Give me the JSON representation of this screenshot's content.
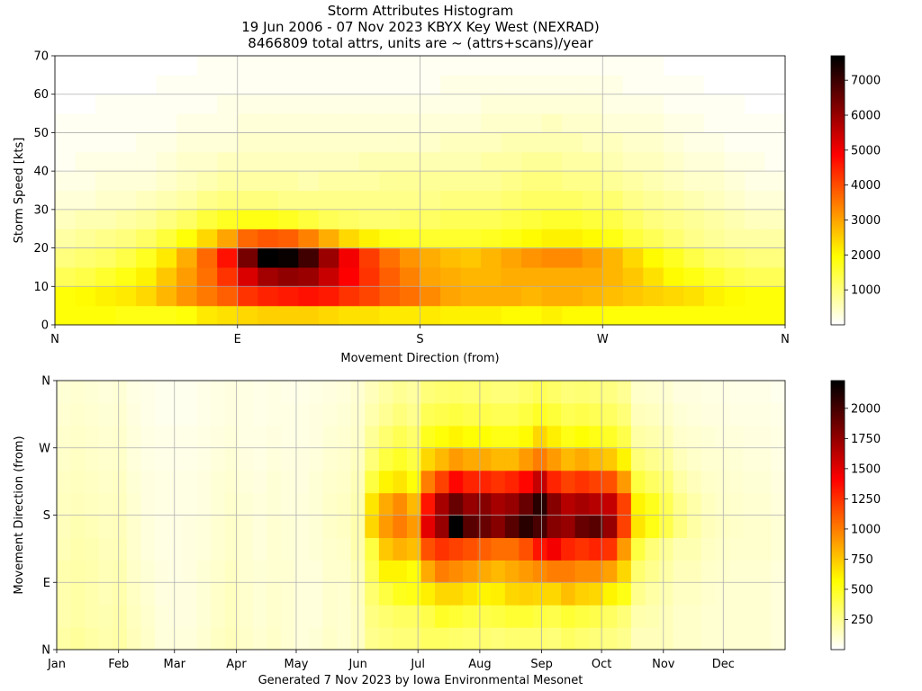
{
  "title_lines": [
    "Storm Attributes Histogram",
    "19 Jun 2006 - 07 Nov 2023 KBYX Key West (NEXRAD)",
    "8466809 total attrs, units are ~ (attrs+scans)/year"
  ],
  "footer": "Generated 7 Nov 2023 by Iowa Environmental Mesonet",
  "chart_data": [
    {
      "type": "heatmap",
      "xlabel": "Movement Direction (from)",
      "ylabel": "Storm Speed [kts]",
      "xticks": [
        {
          "value": 0,
          "label": "N"
        },
        {
          "value": 90,
          "label": "E"
        },
        {
          "value": 180,
          "label": "S"
        },
        {
          "value": 270,
          "label": "W"
        },
        {
          "value": 360,
          "label": "N"
        }
      ],
      "yticks": [
        0,
        10,
        20,
        30,
        40,
        50,
        60,
        70
      ],
      "xlim": [
        0,
        360
      ],
      "ylim": [
        0,
        70
      ],
      "x_bin_deg": 10,
      "y_bins_kts": [
        0,
        5,
        10,
        15,
        20,
        25,
        30,
        35,
        40,
        45,
        50,
        55,
        60,
        65,
        70
      ],
      "colorbar": {
        "min": 0,
        "max": 7700,
        "ticks": [
          1000,
          2000,
          3000,
          4000,
          5000,
          6000,
          7000
        ]
      },
      "colormap": "hot_r",
      "grid": true,
      "values": [
        [
          1900,
          1900,
          1900,
          1800,
          1800,
          1800,
          1900,
          2200,
          2300,
          2400,
          2500,
          2500,
          2500,
          2400,
          2300,
          2300,
          2200,
          2200,
          2200,
          2100,
          2100,
          2100,
          2000,
          2000,
          2100,
          2000,
          2000,
          1900,
          1900,
          1900,
          1900,
          1900,
          1900,
          1900,
          1900,
          1900
        ],
        [
          1900,
          2000,
          2100,
          2200,
          2400,
          2800,
          3200,
          3500,
          3800,
          4300,
          4500,
          4600,
          4700,
          4600,
          4300,
          4100,
          3800,
          3600,
          3300,
          3000,
          2900,
          2900,
          2900,
          2800,
          2900,
          2900,
          2800,
          2700,
          2600,
          2500,
          2400,
          2300,
          2100,
          2000,
          1900,
          1900
        ],
        [
          1300,
          1400,
          1600,
          1800,
          2100,
          2600,
          3100,
          3600,
          4300,
          5300,
          5900,
          6100,
          6000,
          5500,
          4900,
          4300,
          3800,
          3400,
          3000,
          2900,
          2800,
          2800,
          2900,
          2900,
          2900,
          2900,
          2900,
          2800,
          2600,
          2300,
          2000,
          1800,
          1600,
          1400,
          1300,
          1300
        ],
        [
          1000,
          1100,
          1200,
          1400,
          1700,
          2200,
          2900,
          3700,
          4700,
          6400,
          7700,
          7600,
          7000,
          6000,
          5000,
          4200,
          3600,
          3200,
          2900,
          2700,
          2600,
          2800,
          3000,
          3200,
          3300,
          3300,
          3100,
          2800,
          2400,
          2000,
          1700,
          1400,
          1200,
          1100,
          1000,
          1000
        ],
        [
          700,
          800,
          900,
          1000,
          1200,
          1500,
          1900,
          2400,
          3000,
          3700,
          3900,
          3800,
          3400,
          2900,
          2400,
          2100,
          1800,
          1700,
          1600,
          1600,
          1600,
          1700,
          1800,
          2000,
          2100,
          2100,
          2000,
          1800,
          1500,
          1300,
          1100,
          900,
          800,
          700,
          700,
          700
        ],
        [
          500,
          600,
          600,
          700,
          800,
          1000,
          1200,
          1500,
          1700,
          1800,
          1800,
          1700,
          1500,
          1300,
          1200,
          1100,
          1100,
          1200,
          1200,
          1300,
          1300,
          1300,
          1400,
          1500,
          1600,
          1600,
          1500,
          1400,
          1200,
          1000,
          900,
          800,
          700,
          600,
          500,
          500
        ],
        [
          300,
          300,
          400,
          400,
          500,
          600,
          700,
          900,
          1000,
          1000,
          1000,
          900,
          900,
          900,
          900,
          900,
          900,
          900,
          900,
          1000,
          1000,
          1000,
          1100,
          1200,
          1200,
          1200,
          1100,
          1100,
          900,
          800,
          700,
          600,
          500,
          400,
          300,
          300
        ],
        [
          200,
          200,
          300,
          300,
          300,
          400,
          500,
          600,
          700,
          700,
          700,
          700,
          600,
          700,
          700,
          700,
          800,
          800,
          800,
          800,
          800,
          800,
          900,
          1000,
          1000,
          900,
          900,
          800,
          700,
          600,
          500,
          400,
          400,
          300,
          200,
          200
        ],
        [
          100,
          200,
          200,
          200,
          200,
          300,
          400,
          400,
          500,
          500,
          500,
          500,
          500,
          500,
          500,
          600,
          600,
          600,
          600,
          600,
          600,
          700,
          700,
          800,
          800,
          700,
          700,
          600,
          500,
          500,
          400,
          300,
          300,
          200,
          200,
          100
        ],
        [
          100,
          100,
          100,
          100,
          200,
          200,
          300,
          300,
          300,
          400,
          400,
          400,
          400,
          400,
          400,
          400,
          400,
          400,
          400,
          500,
          500,
          500,
          600,
          600,
          600,
          600,
          500,
          500,
          400,
          400,
          300,
          200,
          200,
          100,
          100,
          100
        ],
        [
          100,
          100,
          100,
          100,
          100,
          100,
          200,
          200,
          200,
          300,
          300,
          300,
          300,
          300,
          300,
          300,
          300,
          300,
          300,
          300,
          300,
          400,
          400,
          400,
          500,
          400,
          400,
          300,
          300,
          300,
          200,
          200,
          100,
          100,
          100,
          100
        ],
        [
          0,
          0,
          100,
          100,
          100,
          100,
          100,
          100,
          200,
          200,
          200,
          200,
          200,
          200,
          200,
          200,
          200,
          200,
          200,
          200,
          200,
          300,
          300,
          300,
          300,
          300,
          300,
          200,
          200,
          200,
          100,
          100,
          100,
          100,
          0,
          0
        ],
        [
          0,
          0,
          0,
          0,
          0,
          100,
          100,
          100,
          100,
          100,
          100,
          100,
          100,
          100,
          100,
          100,
          100,
          100,
          100,
          200,
          200,
          200,
          200,
          200,
          200,
          200,
          200,
          200,
          100,
          100,
          100,
          100,
          0,
          0,
          0,
          0
        ],
        [
          0,
          0,
          0,
          0,
          0,
          0,
          0,
          100,
          100,
          100,
          100,
          100,
          100,
          100,
          100,
          100,
          100,
          100,
          100,
          100,
          100,
          100,
          100,
          100,
          100,
          100,
          100,
          100,
          100,
          100,
          0,
          0,
          0,
          0,
          0,
          0
        ]
      ]
    },
    {
      "type": "heatmap",
      "xlabel": "",
      "ylabel": "Movement Direction (from)",
      "xticks": [
        "Jan",
        "Feb",
        "Mar",
        "Apr",
        "May",
        "Jun",
        "Jul",
        "Aug",
        "Sep",
        "Oct",
        "Nov",
        "Dec"
      ],
      "yticks": [
        "N",
        "E",
        "S",
        "W",
        "N"
      ],
      "ylim": [
        0,
        360
      ],
      "y_bin_deg": 10,
      "x_bin": "week",
      "colorbar": {
        "min": 0,
        "max": 2230,
        "ticks": [
          250,
          500,
          750,
          1000,
          1250,
          1500,
          1750,
          2000
        ]
      },
      "colormap": "hot_r",
      "grid": true,
      "values": [
        [
          200,
          220,
          200,
          180,
          200,
          150,
          120,
          80,
          80,
          80,
          100,
          130,
          150,
          120,
          100,
          120,
          100,
          80,
          90,
          120,
          100,
          130,
          250,
          280,
          300,
          300,
          350,
          350,
          330,
          320,
          320,
          300,
          320,
          320,
          320,
          300,
          350,
          320,
          300,
          280,
          250,
          150,
          150,
          150,
          120,
          120,
          100,
          100,
          100,
          100,
          100,
          80
        ],
        [
          180,
          200,
          180,
          170,
          190,
          140,
          110,
          80,
          70,
          70,
          90,
          120,
          140,
          110,
          90,
          110,
          100,
          80,
          80,
          110,
          100,
          130,
          280,
          320,
          350,
          350,
          400,
          480,
          450,
          420,
          400,
          420,
          450,
          450,
          420,
          400,
          450,
          420,
          400,
          350,
          300,
          180,
          170,
          150,
          120,
          120,
          100,
          100,
          100,
          100,
          100,
          80
        ],
        [
          180,
          200,
          180,
          160,
          180,
          130,
          100,
          70,
          70,
          70,
          90,
          120,
          140,
          110,
          90,
          110,
          100,
          80,
          80,
          110,
          100,
          140,
          320,
          420,
          500,
          520,
          620,
          700,
          700,
          650,
          600,
          620,
          700,
          720,
          700,
          700,
          780,
          720,
          700,
          600,
          520,
          250,
          200,
          170,
          130,
          130,
          110,
          100,
          100,
          100,
          100,
          80
        ],
        [
          180,
          190,
          180,
          160,
          170,
          120,
          90,
          70,
          60,
          70,
          90,
          110,
          130,
          100,
          90,
          100,
          100,
          80,
          80,
          110,
          110,
          160,
          380,
          600,
          600,
          550,
          850,
          1000,
          950,
          900,
          850,
          800,
          850,
          900,
          950,
          1000,
          1000,
          950,
          950,
          880,
          700,
          320,
          250,
          200,
          150,
          150,
          120,
          110,
          100,
          100,
          100,
          80
        ],
        [
          160,
          180,
          170,
          150,
          160,
          110,
          80,
          60,
          60,
          70,
          80,
          100,
          120,
          100,
          80,
          100,
          90,
          80,
          90,
          110,
          120,
          180,
          420,
          750,
          820,
          780,
          1150,
          1250,
          1200,
          1150,
          1100,
          1050,
          1050,
          1150,
          1350,
          1450,
          1300,
          1250,
          1300,
          1250,
          900,
          420,
          300,
          230,
          170,
          170,
          130,
          120,
          110,
          110,
          110,
          90
        ],
        [
          150,
          170,
          160,
          140,
          150,
          110,
          80,
          60,
          60,
          70,
          80,
          100,
          120,
          100,
          80,
          100,
          90,
          80,
          90,
          120,
          130,
          180,
          700,
          900,
          1000,
          900,
          1500,
          1750,
          2230,
          1950,
          1900,
          1800,
          1950,
          2100,
          2000,
          1800,
          1750,
          1900,
          1950,
          1750,
          1200,
          650,
          520,
          400,
          280,
          200,
          150,
          130,
          120,
          110,
          110,
          90
        ],
        [
          140,
          150,
          140,
          130,
          140,
          100,
          70,
          60,
          60,
          60,
          70,
          90,
          110,
          90,
          80,
          90,
          80,
          80,
          90,
          120,
          130,
          170,
          650,
          850,
          950,
          800,
          1350,
          1700,
          1900,
          1750,
          1800,
          1700,
          1750,
          1900,
          2100,
          1800,
          1650,
          1700,
          1650,
          1600,
          1200,
          600,
          500,
          380,
          260,
          190,
          140,
          120,
          110,
          100,
          100,
          80
        ],
        [
          130,
          140,
          130,
          120,
          130,
          90,
          70,
          60,
          60,
          60,
          70,
          90,
          100,
          80,
          70,
          90,
          80,
          70,
          90,
          110,
          120,
          160,
          420,
          600,
          650,
          550,
          1000,
          1200,
          1400,
          1300,
          1300,
          1250,
          1300,
          1400,
          1600,
          1300,
          1200,
          1250,
          1200,
          1150,
          900,
          420,
          350,
          300,
          200,
          150,
          120,
          110,
          100,
          90,
          90,
          70
        ],
        [
          120,
          130,
          120,
          110,
          120,
          80,
          60,
          50,
          50,
          50,
          60,
          80,
          90,
          70,
          60,
          80,
          70,
          70,
          80,
          100,
          110,
          140,
          300,
          420,
          480,
          420,
          700,
          800,
          900,
          850,
          850,
          800,
          800,
          900,
          1000,
          900,
          800,
          850,
          800,
          750,
          600,
          300,
          250,
          220,
          150,
          120,
          100,
          100,
          90,
          80,
          80,
          60
        ],
        [
          110,
          120,
          110,
          100,
          110,
          80,
          60,
          50,
          50,
          50,
          60,
          70,
          80,
          60,
          60,
          70,
          60,
          60,
          70,
          90,
          100,
          120,
          230,
          320,
          380,
          330,
          500,
          550,
          600,
          560,
          560,
          520,
          520,
          580,
          700,
          620,
          520,
          560,
          520,
          480,
          400,
          200,
          180,
          160,
          110,
          100,
          90,
          80,
          80,
          70,
          70,
          60
        ],
        [
          100,
          110,
          100,
          90,
          100,
          70,
          50,
          40,
          40,
          40,
          50,
          60,
          70,
          60,
          50,
          60,
          60,
          60,
          70,
          80,
          90,
          110,
          180,
          240,
          290,
          250,
          380,
          400,
          420,
          400,
          400,
          380,
          380,
          420,
          480,
          440,
          380,
          400,
          380,
          350,
          300,
          150,
          140,
          120,
          90,
          80,
          70,
          70,
          60,
          60,
          60,
          50
        ],
        [
          90,
          100,
          90,
          80,
          90,
          60,
          50,
          40,
          40,
          40,
          50,
          60,
          70,
          60,
          50,
          60,
          50,
          50,
          60,
          70,
          80,
          100,
          150,
          200,
          240,
          210,
          300,
          320,
          330,
          320,
          320,
          300,
          300,
          330,
          370,
          340,
          300,
          310,
          300,
          280,
          240,
          120,
          110,
          100,
          70,
          70,
          60,
          60,
          50,
          50,
          50,
          40
        ]
      ]
    }
  ]
}
